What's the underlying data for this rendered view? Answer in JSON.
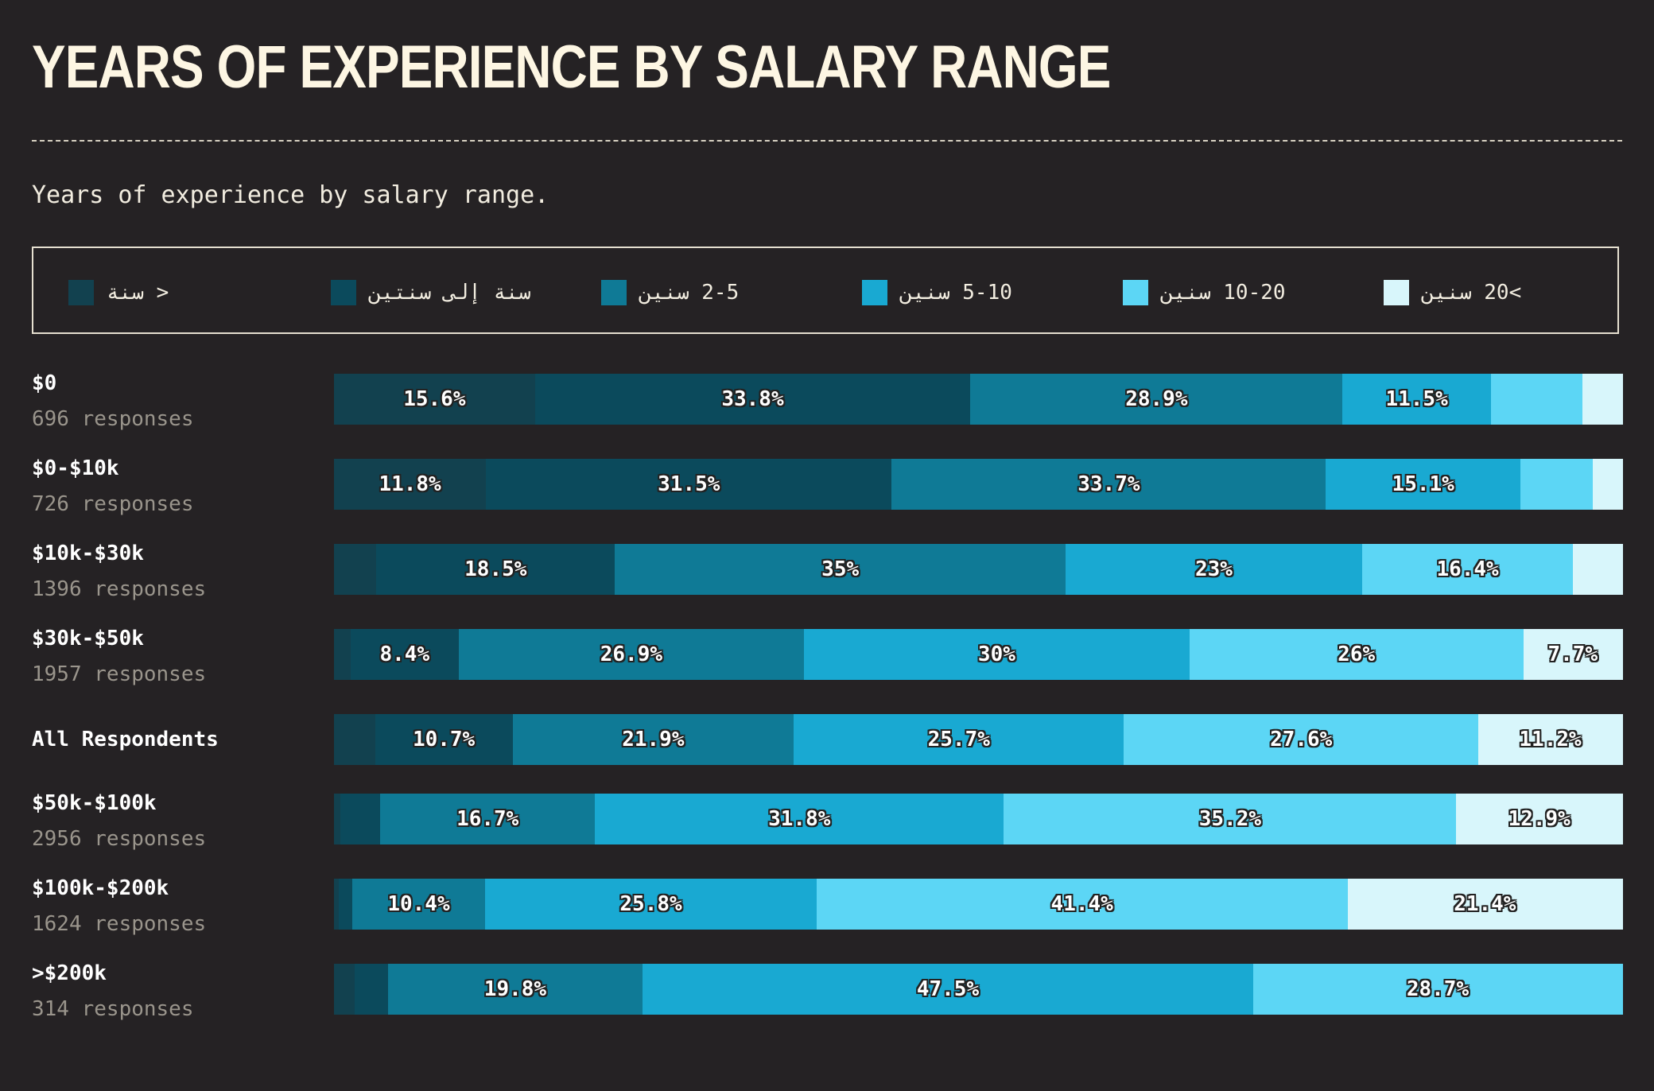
{
  "page": {
    "title": "YEARS OF EXPERIENCE BY SALARY RANGE",
    "subtitle": "Years of experience by salary range."
  },
  "legend": [
    {
      "label": "< سنة",
      "color": "#12414f"
    },
    {
      "label": "سنة إلى سنتين",
      "color": "#0b4a5c"
    },
    {
      "label": "2-5 سنين",
      "color": "#0f7a96"
    },
    {
      "label": "5-10 سنين",
      "color": "#19a9d2"
    },
    {
      "label": "10-20 سنين",
      "color": "#5cd6f5"
    },
    {
      "label": ">20 سنين",
      "color": "#d8f6fb"
    }
  ],
  "colors": {
    "background": "#252224",
    "title": "#fdf6e3",
    "secondary_text": "#9a958c"
  },
  "chart_data": {
    "type": "bar",
    "orientation": "horizontal",
    "stacked": true,
    "normalized": true,
    "xlim": [
      0,
      100
    ],
    "series": [
      "< سنة",
      "سنة إلى سنتين",
      "2-5 سنين",
      "5-10 سنين",
      "10-20 سنين",
      ">20 سنين"
    ],
    "rows": [
      {
        "label": "$0",
        "responses": "696 responses",
        "values": [
          15.6,
          33.8,
          28.9,
          11.5,
          7.1,
          3.1
        ],
        "labels": [
          "15.6%",
          "33.8%",
          "28.9%",
          "11.5%",
          "",
          ""
        ]
      },
      {
        "label": "$0-$10k",
        "responses": "726 responses",
        "values": [
          11.8,
          31.5,
          33.7,
          15.1,
          5.6,
          2.3
        ],
        "labels": [
          "11.8%",
          "31.5%",
          "33.7%",
          "15.1%",
          "",
          ""
        ]
      },
      {
        "label": "$10k-$30k",
        "responses": "1396 responses",
        "values": [
          3.3,
          18.5,
          35,
          23,
          16.4,
          3.8
        ],
        "labels": [
          "",
          "18.5%",
          "35%",
          "23%",
          "16.4%",
          ""
        ]
      },
      {
        "label": "$30k-$50k",
        "responses": "1957 responses",
        "values": [
          1.3,
          8.4,
          26.9,
          30,
          26,
          7.7
        ],
        "labels": [
          "",
          "8.4%",
          "26.9%",
          "30%",
          "26%",
          "7.7%"
        ]
      },
      {
        "label": "All Respondents",
        "responses": "",
        "values": [
          3.2,
          10.7,
          21.9,
          25.7,
          27.6,
          11.2
        ],
        "labels": [
          "",
          "10.7%",
          "21.9%",
          "25.7%",
          "27.6%",
          "11.2%"
        ]
      },
      {
        "label": "$50k-$100k",
        "responses": "2956 responses",
        "values": [
          0.5,
          3.1,
          16.7,
          31.8,
          35.2,
          12.9
        ],
        "labels": [
          "",
          "",
          "16.7%",
          "31.8%",
          "35.2%",
          "12.9%"
        ]
      },
      {
        "label": "$100k-$200k",
        "responses": "1624 responses",
        "values": [
          0.4,
          1.0,
          10.4,
          25.8,
          41.4,
          21.4
        ],
        "labels": [
          "",
          "",
          "10.4%",
          "25.8%",
          "41.4%",
          "21.4%"
        ]
      },
      {
        "label": ">$200k",
        "responses": "314 responses",
        "values": [
          1.6,
          2.6,
          19.8,
          47.5,
          28.7,
          0
        ],
        "labels": [
          "",
          "",
          "19.8%",
          "47.5%",
          "28.7%",
          ""
        ]
      }
    ]
  }
}
